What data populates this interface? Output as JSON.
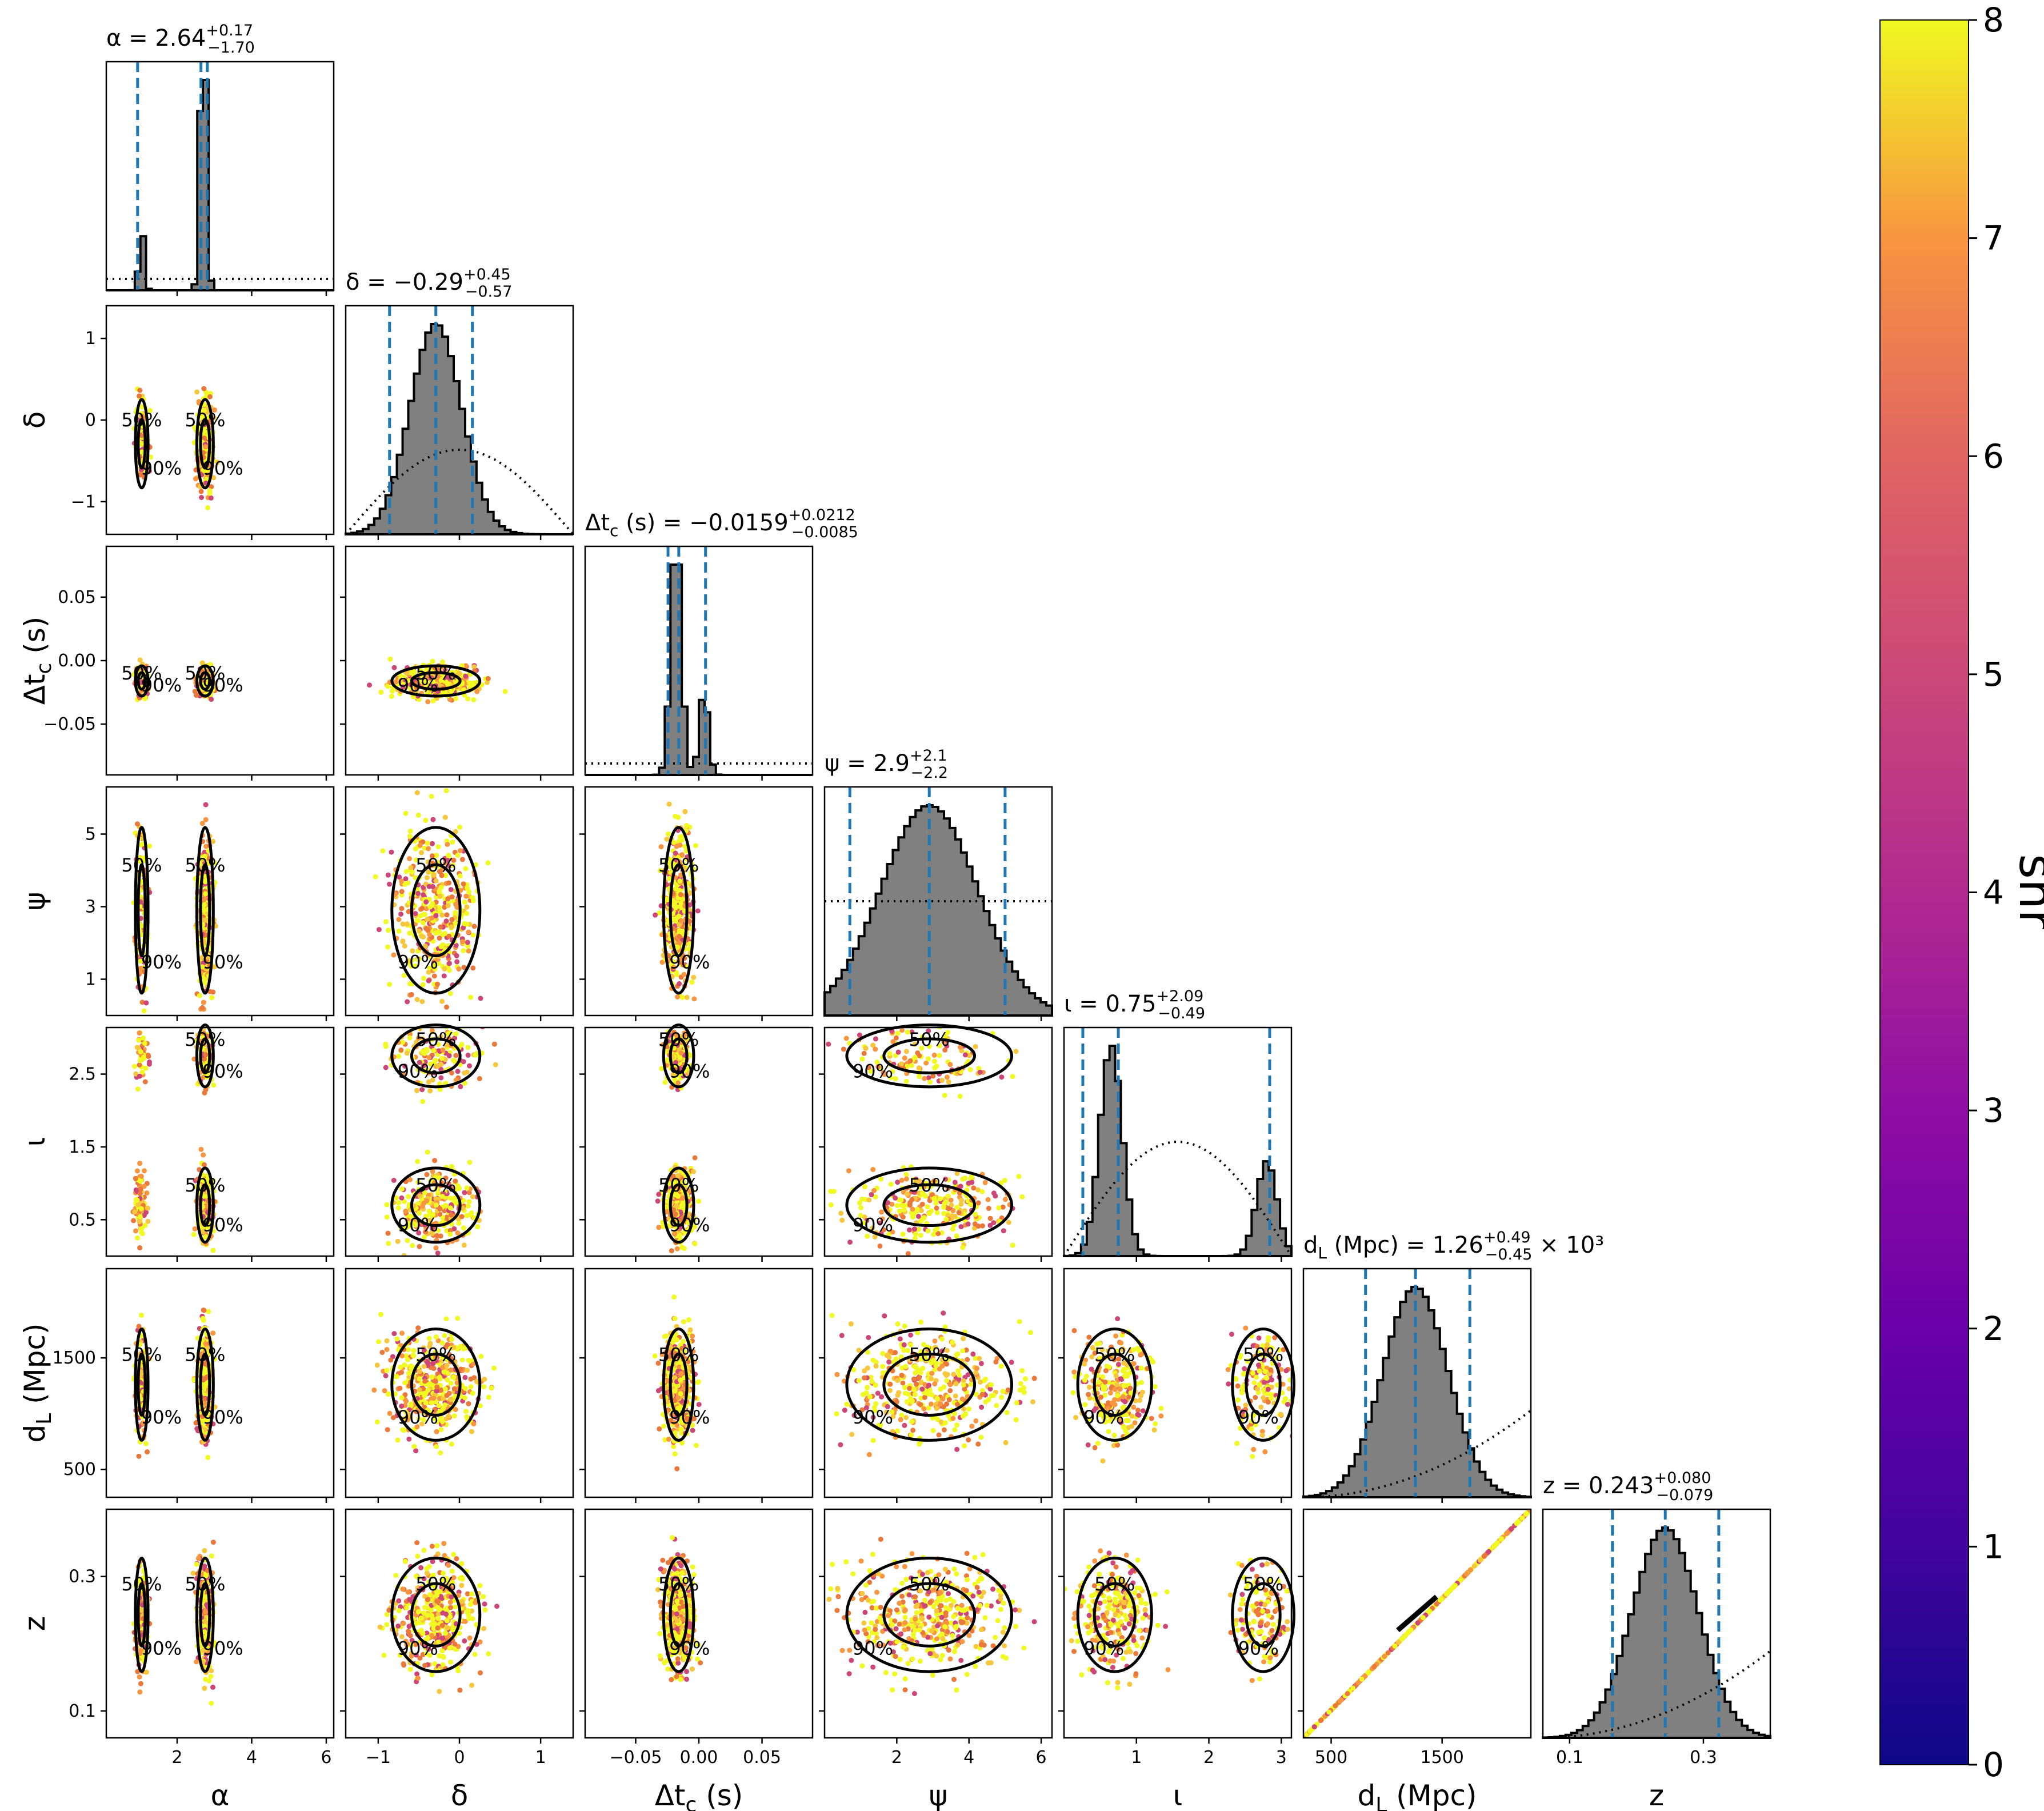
{
  "chart_data": {
    "type": "corner",
    "parameters": [
      {
        "key": "alpha",
        "label": "α",
        "median": 2.64,
        "plus": 0.17,
        "minus": 1.7,
        "title_parts": [
          "α = 2.64",
          "+0.17",
          "−1.70",
          ""
        ],
        "range": [
          0.1,
          6.2
        ],
        "ticks": [
          2,
          4,
          6
        ],
        "tick_labels": [
          "2",
          "4",
          "6"
        ]
      },
      {
        "key": "delta",
        "label": "δ",
        "median": -0.29,
        "plus": 0.45,
        "minus": 0.57,
        "title_parts": [
          "δ = −0.29",
          "+0.45",
          "−0.57",
          ""
        ],
        "range": [
          -1.4,
          1.4
        ],
        "ticks": [
          -1,
          0,
          1
        ],
        "tick_labels": [
          "−1",
          "0",
          "1"
        ]
      },
      {
        "key": "dtc",
        "label": "Δt_c (s)",
        "median": -0.0159,
        "plus": 0.0212,
        "minus": 0.0085,
        "title_parts": [
          "Δt_c (s) = −0.0159",
          "+0.0212",
          "−0.0085",
          ""
        ],
        "range": [
          -0.09,
          0.09
        ],
        "ticks": [
          -0.05,
          0.0,
          0.05
        ],
        "tick_labels": [
          "−0.05",
          "0.00",
          "0.05"
        ]
      },
      {
        "key": "psi",
        "label": "ψ",
        "median": 2.9,
        "plus": 2.1,
        "minus": 2.2,
        "title_parts": [
          "ψ = 2.9",
          "+2.1",
          "−2.2",
          ""
        ],
        "range": [
          0.0,
          6.3
        ],
        "ticks": [
          2,
          4,
          6
        ],
        "tick_labels": [
          "2",
          "4",
          "6"
        ]
      },
      {
        "key": "iota",
        "label": "ι",
        "median": 0.75,
        "plus": 2.09,
        "minus": 0.49,
        "title_parts": [
          "ι = 0.75",
          "+2.09",
          "−0.49",
          ""
        ],
        "range": [
          0.0,
          3.14
        ],
        "ticks": [
          1,
          2,
          3
        ],
        "tick_labels": [
          "1",
          "2",
          "3"
        ]
      },
      {
        "key": "dl",
        "label": "d_L (Mpc)",
        "median": 1260,
        "plus": 490,
        "minus": 450,
        "title_parts": [
          "d_L (Mpc) = 1.26",
          "+0.49",
          "−0.45",
          " × 10³"
        ],
        "range": [
          250,
          2300
        ],
        "ticks": [
          500,
          1500
        ],
        "tick_labels": [
          "500",
          "1500"
        ]
      },
      {
        "key": "z",
        "label": "z",
        "median": 0.243,
        "plus": 0.08,
        "minus": 0.079,
        "title_parts": [
          "z = 0.243",
          "+0.080",
          "−0.079",
          ""
        ],
        "range": [
          0.06,
          0.4
        ],
        "ticks": [
          0.1,
          0.3
        ],
        "tick_labels": [
          "0.1",
          "0.3"
        ]
      }
    ],
    "row_tick_overrides": {
      "alpha": null,
      "delta": {
        "ticks": [
          -1,
          0,
          1
        ],
        "tick_labels": [
          "−1",
          "0",
          "1"
        ]
      },
      "dtc": {
        "ticks": [
          -0.05,
          0.0,
          0.05
        ],
        "tick_labels": [
          "−0.05",
          "0.00",
          "0.05"
        ]
      },
      "psi": {
        "ticks": [
          1,
          3,
          5
        ],
        "tick_labels": [
          "1",
          "3",
          "5"
        ]
      },
      "iota": {
        "ticks": [
          0.5,
          1.5,
          2.5
        ],
        "tick_labels": [
          "0.5",
          "1.5",
          "2.5"
        ]
      },
      "dl": {
        "ticks": [
          500,
          1500
        ],
        "tick_labels": [
          "500",
          "1500"
        ]
      },
      "z": {
        "ticks": [
          0.1,
          0.3
        ],
        "tick_labels": [
          "0.1",
          "0.3"
        ]
      }
    },
    "contour_labels": [
      "50%",
      "90%"
    ],
    "colorbar": {
      "label": "snr",
      "min": 0,
      "max": 8,
      "ticks": [
        0,
        1,
        2,
        3,
        4,
        5,
        6,
        7,
        8
      ],
      "tick_labels": [
        "0",
        "1",
        "2",
        "3",
        "4",
        "5",
        "6",
        "7",
        "8"
      ],
      "colormap": "plasma"
    },
    "colors": {
      "hist_fill": "#808080",
      "hist_edge": "#000000",
      "quantile_line": "#1f77b4",
      "prior_line": "#000000",
      "contour": "#000000",
      "point_high": "#f0f921",
      "point_mid": "#f89540",
      "point_low": "#cc4778"
    },
    "grid": false,
    "legend": "none"
  }
}
